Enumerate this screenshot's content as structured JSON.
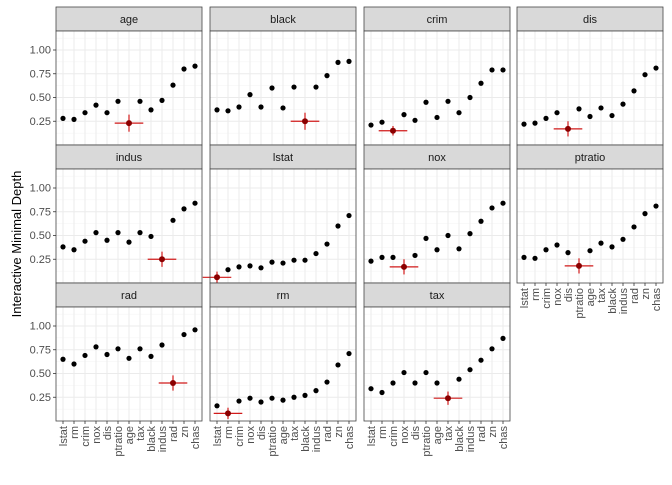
{
  "chart_data": {
    "type": "scatter",
    "ylabel": "Interactive Minimal Depth",
    "xlabel": "",
    "categories": [
      "lstat",
      "rm",
      "crim",
      "nox",
      "dis",
      "ptratio",
      "age",
      "tax",
      "black",
      "indus",
      "rad",
      "zn",
      "chas"
    ],
    "ylim": [
      0.0,
      1.2
    ],
    "yticks": [
      "0.25",
      "0.50",
      "0.75",
      "1.00"
    ],
    "colors": {
      "strip": "#d9d9d9",
      "panel_border": "#444444",
      "grid": "#ebebeb",
      "point": "#000000",
      "highlight_point": "#8b0000",
      "highlight_bar": "#d11a1a"
    },
    "panels": [
      {
        "title": "age",
        "values": [
          0.28,
          0.27,
          0.34,
          0.42,
          0.34,
          0.46,
          null,
          0.46,
          0.37,
          0.47,
          0.63,
          0.8,
          0.83
        ],
        "highlight": {
          "category": "age",
          "value": 0.23,
          "err": 0.09
        }
      },
      {
        "title": "black",
        "values": [
          0.37,
          0.36,
          0.4,
          0.53,
          0.4,
          0.6,
          0.39,
          0.61,
          null,
          0.61,
          0.73,
          0.87,
          0.88
        ],
        "highlight": {
          "category": "black",
          "value": 0.25,
          "err": 0.09
        }
      },
      {
        "title": "crim",
        "values": [
          0.21,
          0.24,
          null,
          0.32,
          0.26,
          0.45,
          0.29,
          0.46,
          0.34,
          0.5,
          0.65,
          0.79,
          0.79
        ],
        "highlight": {
          "category": "crim",
          "value": 0.15,
          "err": 0.05
        }
      },
      {
        "title": "dis",
        "values": [
          0.22,
          0.23,
          0.28,
          0.34,
          null,
          0.38,
          0.3,
          0.39,
          0.31,
          0.43,
          0.57,
          0.74,
          0.81
        ],
        "highlight": {
          "category": "dis",
          "value": 0.17,
          "err": 0.08
        }
      },
      {
        "title": "indus",
        "values": [
          0.38,
          0.35,
          0.44,
          0.53,
          0.45,
          0.53,
          0.43,
          0.53,
          0.49,
          null,
          0.66,
          0.78,
          0.84
        ],
        "highlight": {
          "category": "indus",
          "value": 0.25,
          "err": 0.08
        }
      },
      {
        "title": "lstat",
        "values": [
          null,
          0.14,
          0.17,
          0.18,
          0.16,
          0.22,
          0.21,
          0.24,
          0.24,
          0.31,
          0.41,
          0.6,
          0.71
        ],
        "highlight": {
          "category": "lstat",
          "value": 0.06,
          "err": 0.06
        }
      },
      {
        "title": "nox",
        "values": [
          0.23,
          0.27,
          0.27,
          null,
          0.29,
          0.47,
          0.35,
          0.5,
          0.36,
          0.52,
          0.65,
          0.79,
          0.84
        ],
        "highlight": {
          "category": "nox",
          "value": 0.17,
          "err": 0.08
        }
      },
      {
        "title": "ptratio",
        "values": [
          0.27,
          0.26,
          0.35,
          0.4,
          0.32,
          null,
          0.34,
          0.42,
          0.38,
          0.46,
          0.59,
          0.73,
          0.81
        ],
        "highlight": {
          "category": "ptratio",
          "value": 0.18,
          "err": 0.08
        }
      },
      {
        "title": "rad",
        "values": [
          0.65,
          0.6,
          0.69,
          0.78,
          0.7,
          0.76,
          0.66,
          0.76,
          0.68,
          0.8,
          null,
          0.91,
          0.96
        ],
        "highlight": {
          "category": "rad",
          "value": 0.4,
          "err": 0.08
        }
      },
      {
        "title": "rm",
        "values": [
          0.16,
          null,
          0.21,
          0.24,
          0.2,
          0.24,
          0.22,
          0.25,
          0.27,
          0.32,
          0.41,
          0.59,
          0.71
        ],
        "highlight": {
          "category": "rm",
          "value": 0.08,
          "err": 0.06
        }
      },
      {
        "title": "tax",
        "values": [
          0.34,
          0.3,
          0.4,
          0.51,
          0.4,
          0.51,
          0.4,
          null,
          0.44,
          0.54,
          0.64,
          0.76,
          0.87
        ],
        "highlight": {
          "category": "tax",
          "value": 0.24,
          "err": 0.07
        }
      }
    ]
  }
}
